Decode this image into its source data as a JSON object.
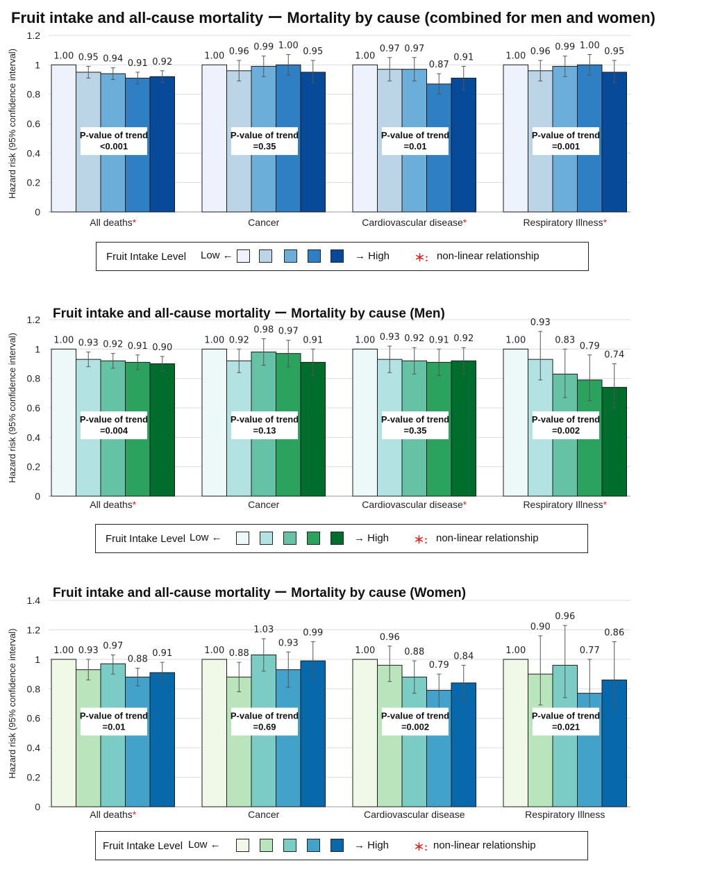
{
  "chart_data": [
    {
      "type": "bar",
      "title": "Fruit intake and all-cause mortality ー Mortality by cause (combined for men and women)",
      "ylabel": "Hazard risk (95% confidence interval)",
      "ylim": [
        0,
        1.2
      ],
      "yticks": [
        "0",
        "0.2",
        "0.4",
        "0.6",
        "0.8",
        "1",
        "1.2"
      ],
      "categories": [
        "All deaths",
        "Cancer",
        "Cardiovascular disease",
        "Respiratory Illness"
      ],
      "nonlinear": [
        true,
        false,
        true,
        true
      ],
      "values": [
        [
          1.0,
          0.95,
          0.94,
          0.91,
          0.92
        ],
        [
          1.0,
          0.96,
          0.99,
          1.0,
          0.95
        ],
        [
          1.0,
          0.97,
          0.97,
          0.87,
          0.91
        ],
        [
          1.0,
          0.96,
          0.99,
          1.0,
          0.95
        ]
      ],
      "ci_low": [
        [
          null,
          0.91,
          0.9,
          0.87,
          0.88
        ],
        [
          null,
          0.89,
          0.92,
          0.93,
          0.88
        ],
        [
          null,
          0.89,
          0.89,
          0.8,
          0.83
        ],
        [
          null,
          0.89,
          0.92,
          0.93,
          0.88
        ]
      ],
      "ci_high": [
        [
          null,
          0.99,
          0.98,
          0.95,
          0.96
        ],
        [
          null,
          1.03,
          1.06,
          1.07,
          1.03
        ],
        [
          null,
          1.05,
          1.05,
          0.94,
          0.99
        ],
        [
          null,
          1.03,
          1.06,
          1.07,
          1.03
        ]
      ],
      "labels": [
        [
          "1.00",
          "0.95",
          "0.94",
          "0.91",
          "0.92"
        ],
        [
          "1.00",
          "0.96",
          "0.99",
          "1.00",
          "0.95"
        ],
        [
          "1.00",
          "0.97",
          "0.97",
          "0.87",
          "0.91"
        ],
        [
          "1.00",
          "0.96",
          "0.99",
          "1.00",
          "0.95"
        ]
      ],
      "pvalue_label": "P-value of trend",
      "pvalues": [
        "<0.001",
        "=0.35",
        "=0.01",
        "=0.001"
      ],
      "colors": [
        "#eef2fc",
        "#bcd5e6",
        "#6aaed9",
        "#2e7fc3",
        "#084a9a"
      ],
      "legend": {
        "label": "Fruit Intake Level",
        "low": "Low ←",
        "high": "→ High",
        "star": "＊:",
        "note": "non-linear relationship"
      }
    },
    {
      "type": "bar",
      "title": "Fruit intake and all-cause mortality ー Mortality by cause (Men)",
      "ylabel": "Hazard risk (95% confidence interval)",
      "ylim": [
        0,
        1.2
      ],
      "yticks": [
        "0",
        "0.2",
        "0.4",
        "0.6",
        "0.8",
        "1",
        "1.2"
      ],
      "categories": [
        "All deaths",
        "Cancer",
        "Cardiovascular disease",
        "Respiratory Illness"
      ],
      "nonlinear": [
        true,
        false,
        true,
        true
      ],
      "values": [
        [
          1.0,
          0.93,
          0.92,
          0.91,
          0.9
        ],
        [
          1.0,
          0.92,
          0.98,
          0.97,
          0.91
        ],
        [
          1.0,
          0.93,
          0.92,
          0.91,
          0.92
        ],
        [
          1.0,
          0.93,
          0.83,
          0.79,
          0.74
        ]
      ],
      "ci_low": [
        [
          null,
          0.88,
          0.87,
          0.86,
          0.85
        ],
        [
          null,
          0.84,
          0.89,
          0.88,
          0.82
        ],
        [
          null,
          0.84,
          0.83,
          0.82,
          0.83
        ],
        [
          null,
          0.79,
          0.67,
          0.65,
          0.6
        ]
      ],
      "ci_high": [
        [
          null,
          0.98,
          0.97,
          0.96,
          0.95
        ],
        [
          null,
          1.0,
          1.07,
          1.06,
          1.0
        ],
        [
          null,
          1.02,
          1.01,
          1.0,
          1.01
        ],
        [
          null,
          1.12,
          1.0,
          0.96,
          0.9
        ]
      ],
      "labels": [
        [
          "1.00",
          "0.93",
          "0.92",
          "0.91",
          "0.90"
        ],
        [
          "1.00",
          "0.92",
          "0.98",
          "0.97",
          "0.91"
        ],
        [
          "1.00",
          "0.93",
          "0.92",
          "0.91",
          "0.92"
        ],
        [
          "1.00",
          "0.93",
          "0.83",
          "0.79",
          "0.74"
        ]
      ],
      "pvalue_label": "P-value of trend",
      "pvalues": [
        "=0.004",
        "=0.13",
        "=0.35",
        "=0.002"
      ],
      "colors": [
        "#edf8f8",
        "#b2e2e2",
        "#66c2a4",
        "#2ca25f",
        "#006d2c"
      ],
      "legend": {
        "label": "Fruit Intake Level",
        "low": "Low ←",
        "high": "→ High",
        "star": "＊:",
        "note": "non-linear relationship"
      }
    },
    {
      "type": "bar",
      "title": "Fruit intake and all-cause mortality ー Mortality by cause (Women)",
      "ylabel": "Hazard risk (95% confidence interval)",
      "ylim": [
        0,
        1.4
      ],
      "yticks": [
        "0",
        "0.2",
        "0.4",
        "0.6",
        "0.8",
        "1",
        "1.2",
        "1.4"
      ],
      "categories": [
        "All deaths",
        "Cancer",
        "Cardiovascular disease",
        "Respiratory Illness"
      ],
      "nonlinear": [
        true,
        false,
        false,
        false
      ],
      "values": [
        [
          1.0,
          0.93,
          0.97,
          0.88,
          0.91
        ],
        [
          1.0,
          0.88,
          1.03,
          0.93,
          0.99
        ],
        [
          1.0,
          0.96,
          0.88,
          0.79,
          0.84
        ],
        [
          1.0,
          0.9,
          0.96,
          0.77,
          0.86
        ]
      ],
      "ci_low": [
        [
          null,
          0.86,
          0.9,
          0.82,
          0.84
        ],
        [
          null,
          0.78,
          0.92,
          0.81,
          0.87
        ],
        [
          null,
          0.85,
          0.77,
          0.67,
          0.72
        ],
        [
          null,
          0.69,
          0.74,
          0.57,
          0.66
        ]
      ],
      "ci_high": [
        [
          null,
          1.0,
          1.03,
          0.94,
          0.98
        ],
        [
          null,
          0.98,
          1.14,
          1.05,
          1.12
        ],
        [
          null,
          1.09,
          0.99,
          0.9,
          0.96
        ],
        [
          null,
          1.16,
          1.23,
          1.0,
          1.12
        ]
      ],
      "labels": [
        [
          "1.00",
          "0.93",
          "0.97",
          "0.88",
          "0.91"
        ],
        [
          "1.00",
          "0.88",
          "1.03",
          "0.93",
          "0.99"
        ],
        [
          "1.00",
          "0.96",
          "0.88",
          "0.79",
          "0.84"
        ],
        [
          "1.00",
          "0.90",
          "0.96",
          "0.77",
          "0.86"
        ]
      ],
      "pvalue_label": "P-value of trend",
      "pvalues": [
        "=0.01",
        "=0.69",
        "=0.002",
        "=0.021"
      ],
      "colors": [
        "#f0f9e8",
        "#bae4bc",
        "#7bccc4",
        "#43a2ca",
        "#0868ac"
      ],
      "legend": {
        "label": "Fruit Intake Level",
        "low": "Low ←",
        "high": "→ High",
        "star": "＊:",
        "note": "non-linear relationship"
      }
    }
  ]
}
